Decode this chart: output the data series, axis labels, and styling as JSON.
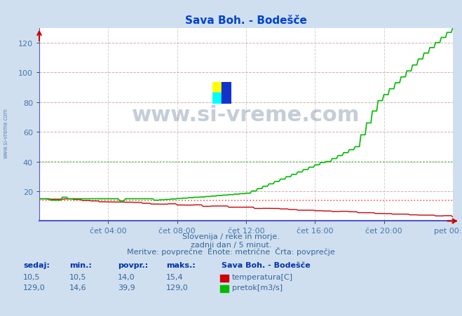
{
  "title": "Sava Boh. - Bodešče",
  "bg_color": "#d0dff0",
  "plot_bg_color": "#ffffff",
  "title_color": "#0044cc",
  "tick_color": "#4477aa",
  "grid_color": "#cc9999",
  "grid_vcolor": "#ccaaaa",
  "xlim": [
    0,
    288
  ],
  "ylim": [
    0,
    130
  ],
  "yticks": [
    20,
    40,
    60,
    80,
    100,
    120
  ],
  "xtick_labels": [
    "čet 04:00",
    "čet 08:00",
    "čet 12:00",
    "čet 16:00",
    "čet 20:00",
    "pet 00:00"
  ],
  "xtick_positions": [
    48,
    96,
    144,
    192,
    240,
    288
  ],
  "temp_color": "#cc0000",
  "flow_color": "#00bb00",
  "avg_temp_color": "#ff4444",
  "avg_flow_color": "#44cc44",
  "watermark_text": "www.si-vreme.com",
  "watermark_color": "#1a3a6a",
  "footer_line1": "Slovenija / reke in morje.",
  "footer_line2": "zadnji dan / 5 minut.",
  "footer_line3": "Meritve: povprečne  Enote: metrične  Črta: povprečje",
  "legend_title": "Sava Boh. - Bodešče",
  "col_headers": [
    "sedaj:",
    "min.:",
    "povpr.:",
    "maks.:"
  ],
  "stats_temp": [
    10.5,
    10.5,
    14.0,
    15.4
  ],
  "stats_flow": [
    129.0,
    14.6,
    39.9,
    129.0
  ],
  "temp_avg_value": 14.0,
  "flow_avg_value": 39.9,
  "temp_label": "temperatura[C]",
  "flow_label": "pretok[m3/s]",
  "side_text": "www.si-vreme.com",
  "spine_bottom_color": "#5555cc",
  "arrow_color": "#cc0000"
}
